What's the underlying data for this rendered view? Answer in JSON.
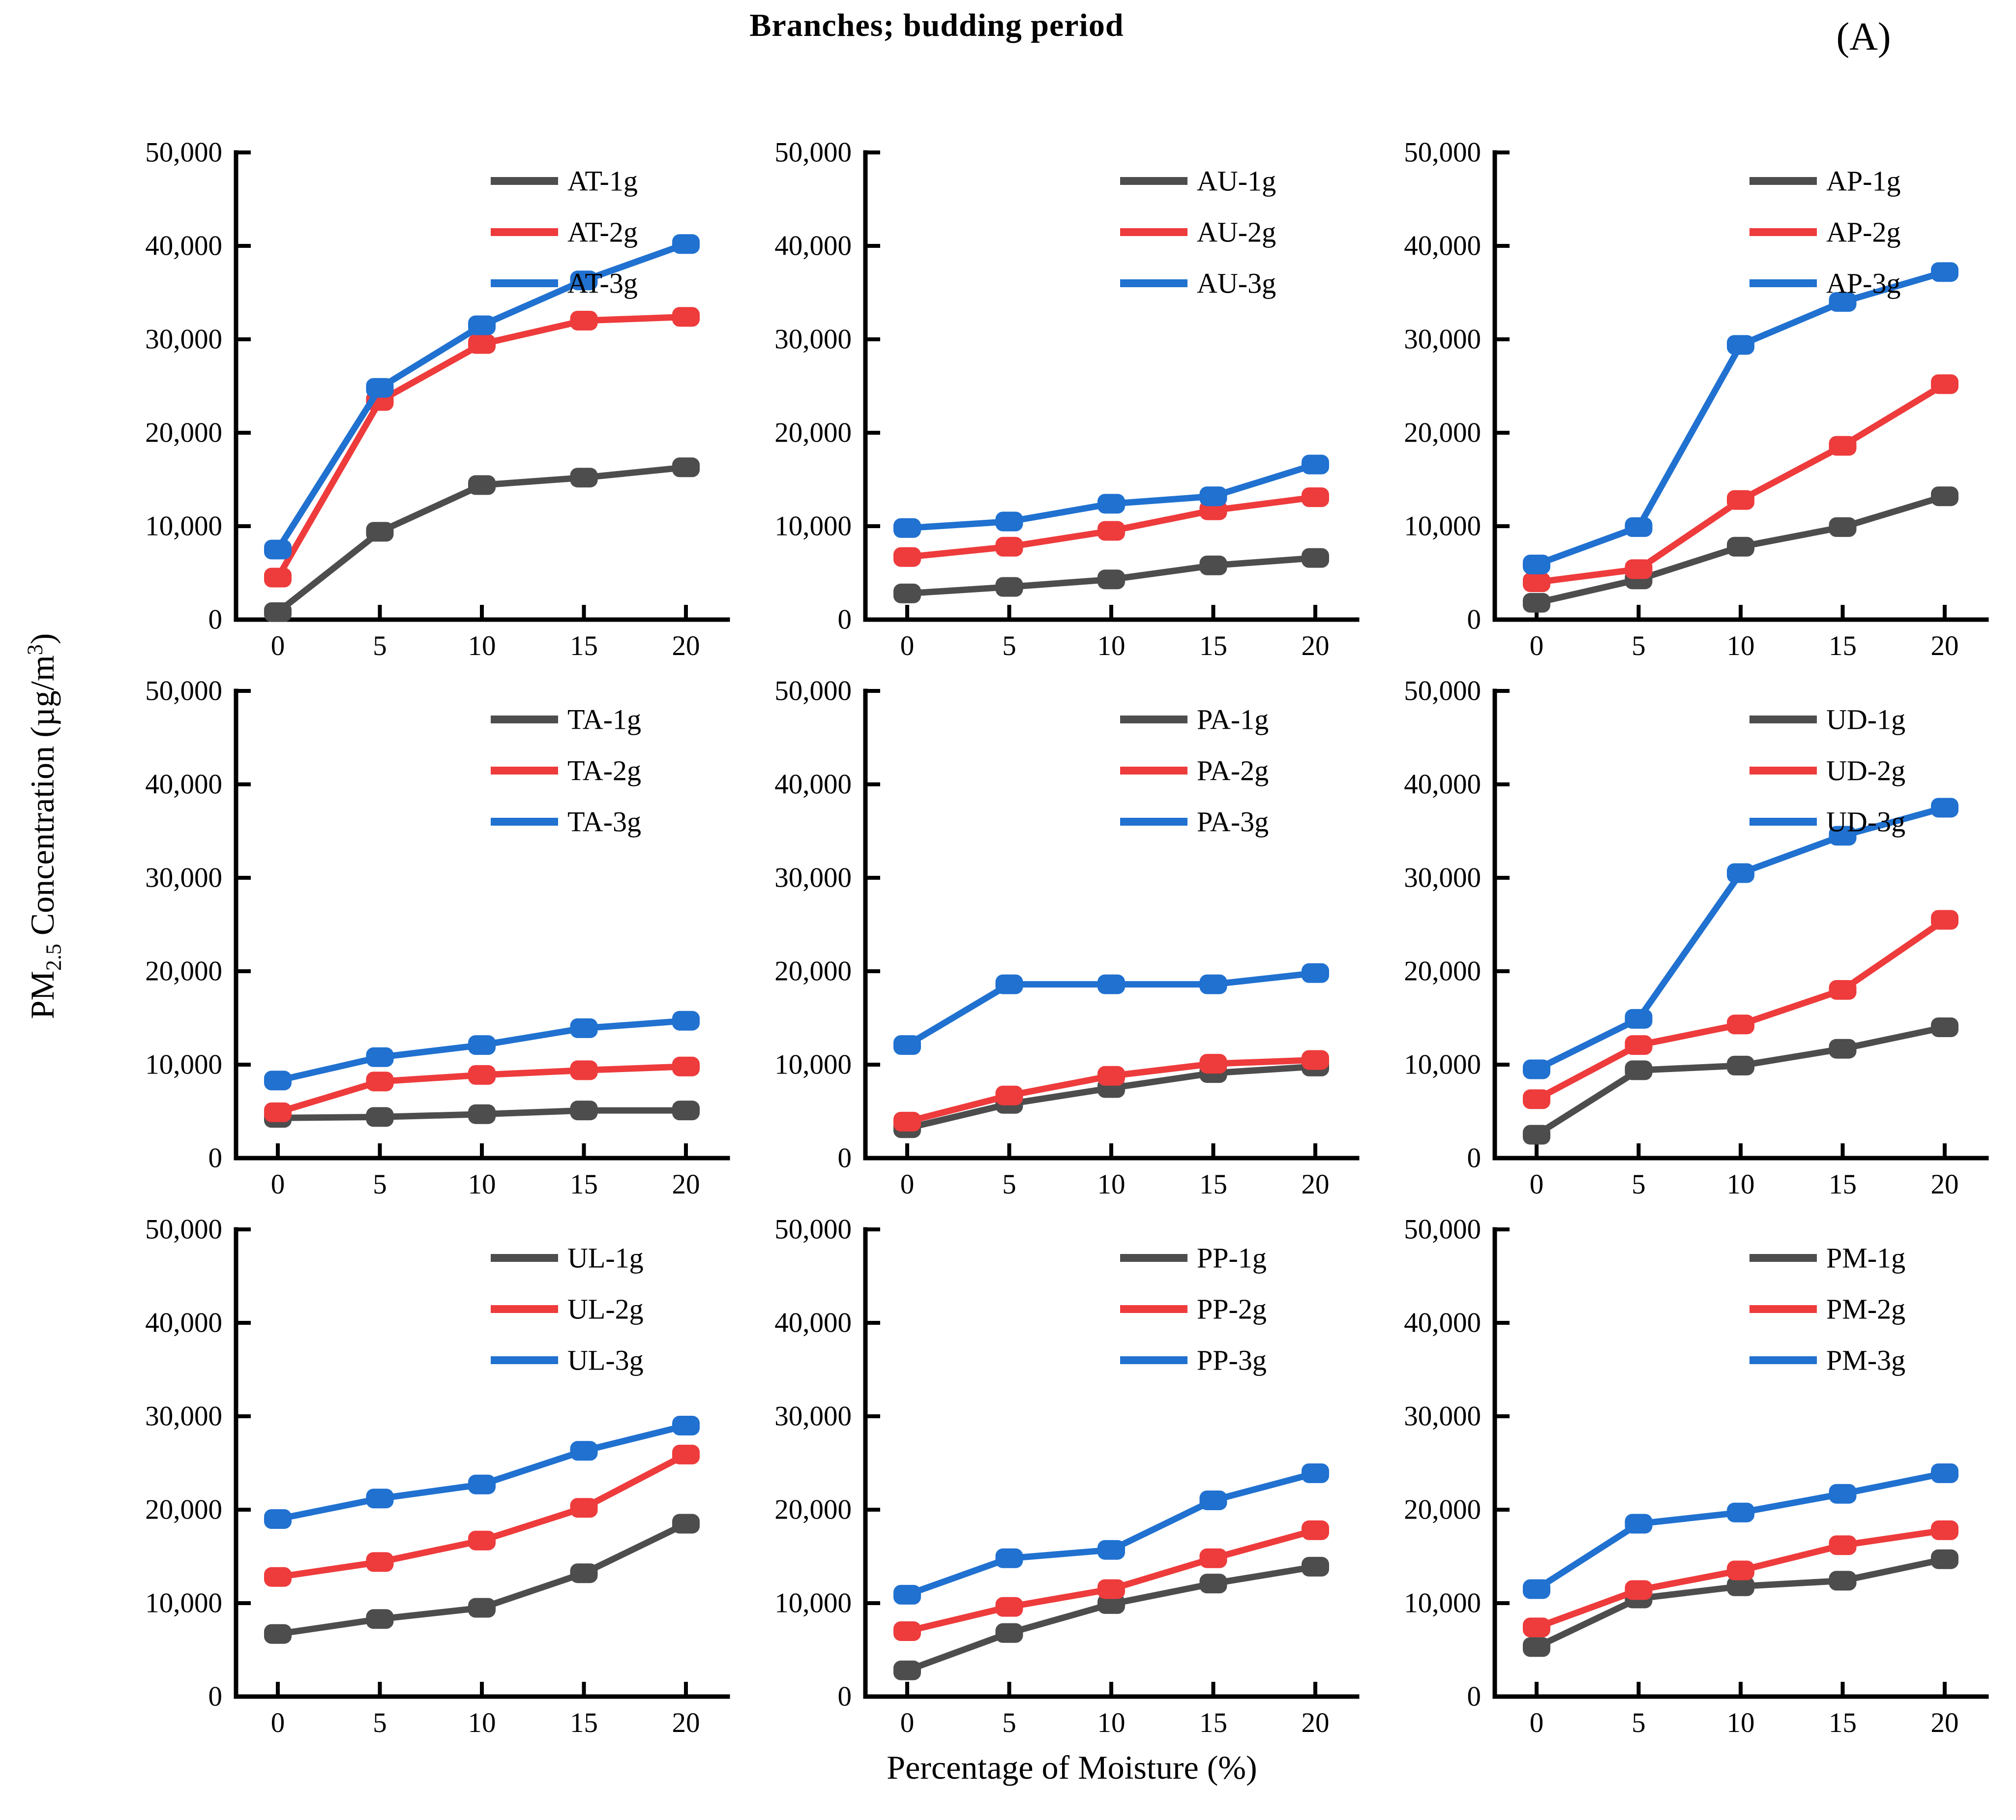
{
  "header": {
    "title": "Branches; budding period",
    "panel_label": "(A)"
  },
  "labels": {
    "x": "Percentage of Moisture (%)",
    "y_prefix": "PM",
    "y_sub": "2.5",
    "y_mid": " Concentration (µg/m",
    "y_sup": "3",
    "y_end": ")"
  },
  "palette": [
    "#4D4D4D",
    "#EE3B3C",
    "#2071D0"
  ],
  "axes": {
    "x_ticks": [
      0,
      5,
      10,
      15,
      20
    ],
    "y_ticks": [
      0,
      10000,
      20000,
      30000,
      40000,
      50000
    ],
    "ylim": [
      0,
      50000
    ],
    "grid": false,
    "legend_position": "top-right-inside"
  },
  "chart_data": [
    {
      "type": "line",
      "code": "AT",
      "x": [
        0,
        5,
        10,
        15,
        20
      ],
      "ylim": [
        0,
        50000
      ],
      "series": [
        {
          "name": "AT-1g",
          "values": [
            800,
            9400,
            14400,
            15200,
            16300
          ]
        },
        {
          "name": "AT-2g",
          "values": [
            4500,
            23400,
            29500,
            32000,
            32400
          ]
        },
        {
          "name": "AT-3g",
          "values": [
            7500,
            24800,
            31500,
            36300,
            40200
          ]
        }
      ]
    },
    {
      "type": "line",
      "code": "AU",
      "x": [
        0,
        5,
        10,
        15,
        20
      ],
      "ylim": [
        0,
        50000
      ],
      "series": [
        {
          "name": "AU-1g",
          "values": [
            2800,
            3500,
            4300,
            5800,
            6600
          ]
        },
        {
          "name": "AU-2g",
          "values": [
            6700,
            7800,
            9500,
            11700,
            13100
          ]
        },
        {
          "name": "AU-3g",
          "values": [
            9800,
            10500,
            12400,
            13200,
            16600
          ]
        }
      ]
    },
    {
      "type": "line",
      "code": "AP",
      "x": [
        0,
        5,
        10,
        15,
        20
      ],
      "ylim": [
        0,
        50000
      ],
      "series": [
        {
          "name": "AP-1g",
          "values": [
            1800,
            4300,
            7800,
            9900,
            13200
          ]
        },
        {
          "name": "AP-2g",
          "values": [
            4000,
            5400,
            12800,
            18600,
            25200
          ]
        },
        {
          "name": "AP-3g",
          "values": [
            5900,
            9900,
            29400,
            34000,
            37200
          ]
        }
      ]
    },
    {
      "type": "line",
      "code": "TA",
      "x": [
        0,
        5,
        10,
        15,
        20
      ],
      "ylim": [
        0,
        50000
      ],
      "series": [
        {
          "name": "TA-1g",
          "values": [
            4300,
            4400,
            4700,
            5100,
            5100
          ]
        },
        {
          "name": "TA-2g",
          "values": [
            4900,
            8200,
            8900,
            9400,
            9800
          ]
        },
        {
          "name": "TA-3g",
          "values": [
            8300,
            10800,
            12100,
            13900,
            14700
          ]
        }
      ]
    },
    {
      "type": "line",
      "code": "PA",
      "x": [
        0,
        5,
        10,
        15,
        20
      ],
      "ylim": [
        0,
        50000
      ],
      "series": [
        {
          "name": "PA-1g",
          "values": [
            3200,
            5800,
            7500,
            9100,
            9800
          ]
        },
        {
          "name": "PA-2g",
          "values": [
            3900,
            6700,
            8800,
            10100,
            10500
          ]
        },
        {
          "name": "PA-3g",
          "values": [
            12100,
            18600,
            18600,
            18600,
            19800
          ]
        }
      ]
    },
    {
      "type": "line",
      "code": "UD",
      "x": [
        0,
        5,
        10,
        15,
        20
      ],
      "ylim": [
        0,
        50000
      ],
      "series": [
        {
          "name": "UD-1g",
          "values": [
            2500,
            9400,
            9900,
            11700,
            14000
          ]
        },
        {
          "name": "UD-2g",
          "values": [
            6300,
            12100,
            14300,
            18000,
            25500
          ]
        },
        {
          "name": "UD-3g",
          "values": [
            9500,
            14900,
            30500,
            34500,
            37500
          ]
        }
      ]
    },
    {
      "type": "line",
      "code": "UL",
      "x": [
        0,
        5,
        10,
        15,
        20
      ],
      "ylim": [
        0,
        50000
      ],
      "series": [
        {
          "name": "UL-1g",
          "values": [
            6700,
            8300,
            9500,
            13200,
            18500
          ]
        },
        {
          "name": "UL-2g",
          "values": [
            12800,
            14400,
            16700,
            20200,
            25900
          ]
        },
        {
          "name": "UL-3g",
          "values": [
            19000,
            21200,
            22700,
            26300,
            29000
          ]
        }
      ]
    },
    {
      "type": "line",
      "code": "PP",
      "x": [
        0,
        5,
        10,
        15,
        20
      ],
      "ylim": [
        0,
        50000
      ],
      "series": [
        {
          "name": "PP-1g",
          "values": [
            2800,
            6800,
            9900,
            12100,
            13900
          ]
        },
        {
          "name": "PP-2g",
          "values": [
            7000,
            9600,
            11500,
            14800,
            17800
          ]
        },
        {
          "name": "PP-3g",
          "values": [
            10900,
            14800,
            15700,
            21000,
            23900
          ]
        }
      ]
    },
    {
      "type": "line",
      "code": "PM",
      "x": [
        0,
        5,
        10,
        15,
        20
      ],
      "ylim": [
        0,
        50000
      ],
      "series": [
        {
          "name": "PM-1g",
          "values": [
            5300,
            10500,
            11800,
            12400,
            14700
          ]
        },
        {
          "name": "PM-2g",
          "values": [
            7400,
            11400,
            13500,
            16200,
            17800
          ]
        },
        {
          "name": "PM-3g",
          "values": [
            11500,
            18500,
            19700,
            21700,
            23900
          ]
        }
      ]
    }
  ]
}
